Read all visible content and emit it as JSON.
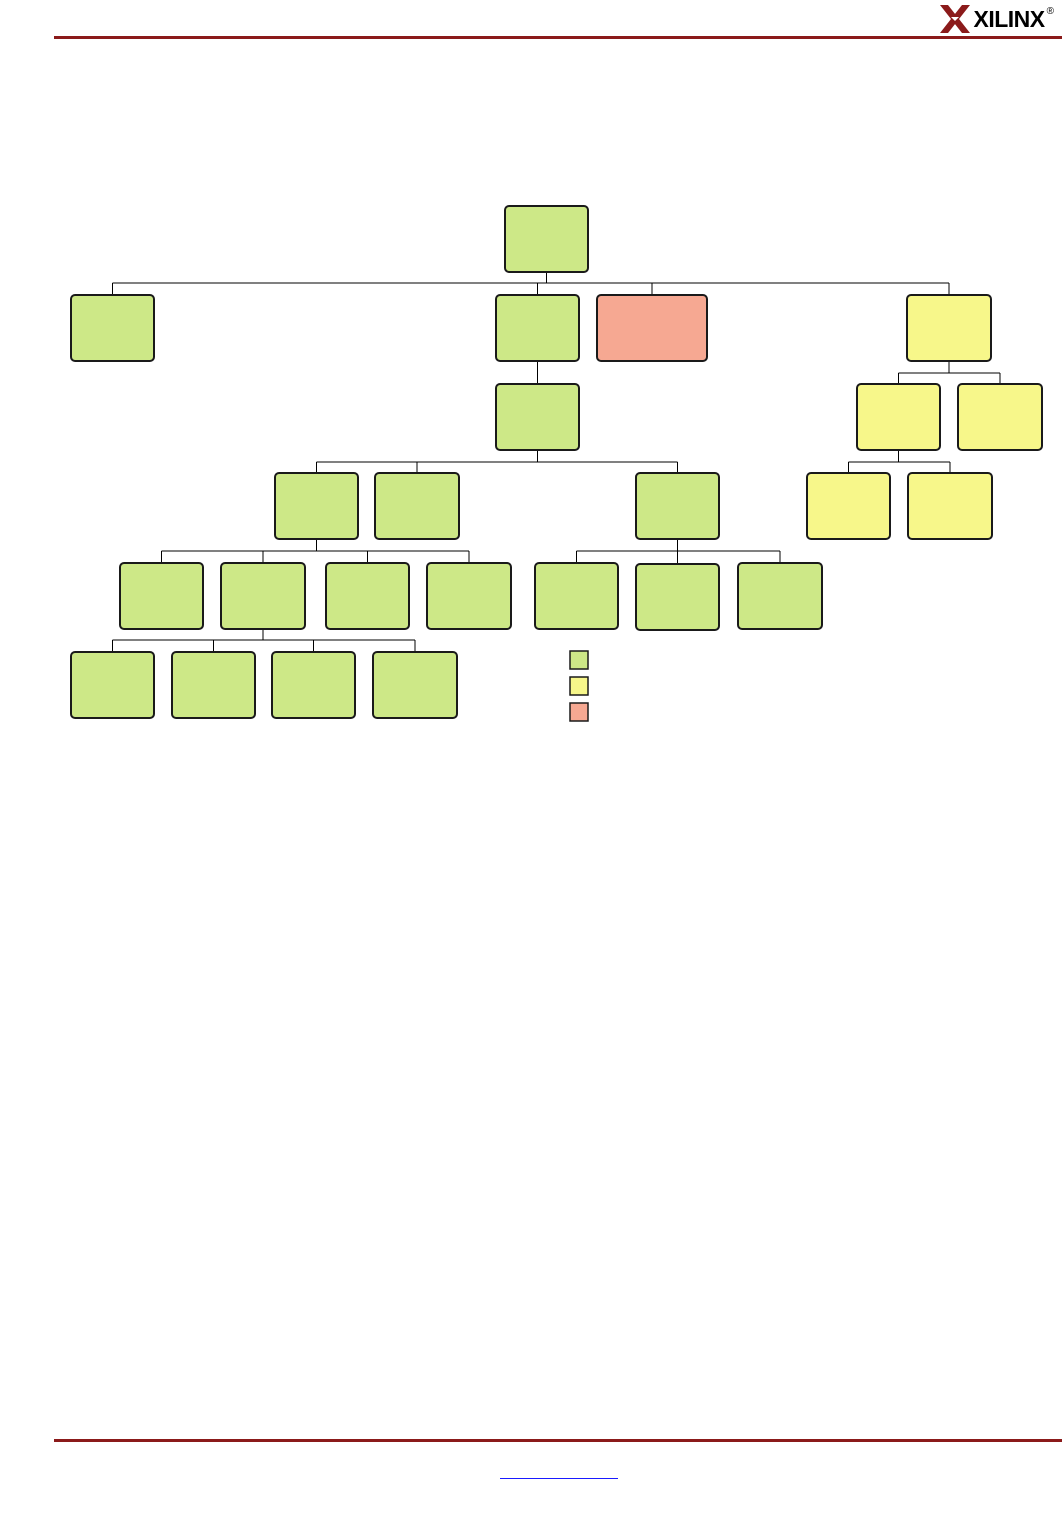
{
  "header": {
    "logo_text": "XILINX",
    "logo_mark": "®",
    "rule_color": "#8b1a1a"
  },
  "diagram": {
    "legend": [
      {
        "color": "#cde887"
      },
      {
        "color": "#f7f78a"
      },
      {
        "color": "#f6a892"
      }
    ],
    "node_colors": {
      "green": "#cde887",
      "yellow": "#f7f78a",
      "salmon": "#f6a892"
    },
    "nodes": [
      {
        "id": "root",
        "color": "green"
      },
      {
        "id": "n1a",
        "color": "green"
      },
      {
        "id": "n1b",
        "color": "green"
      },
      {
        "id": "n1c",
        "color": "salmon"
      },
      {
        "id": "n1d",
        "color": "yellow"
      },
      {
        "id": "n2",
        "color": "green"
      },
      {
        "id": "n2d_a",
        "color": "yellow"
      },
      {
        "id": "n2d_b",
        "color": "yellow"
      },
      {
        "id": "n3a",
        "color": "green"
      },
      {
        "id": "n3b",
        "color": "green"
      },
      {
        "id": "n3c",
        "color": "green"
      },
      {
        "id": "n3d_a",
        "color": "yellow"
      },
      {
        "id": "n3d_b",
        "color": "yellow"
      },
      {
        "id": "n4a",
        "color": "green"
      },
      {
        "id": "n4b",
        "color": "green"
      },
      {
        "id": "n4c",
        "color": "green"
      },
      {
        "id": "n4d",
        "color": "green"
      },
      {
        "id": "n4e",
        "color": "green"
      },
      {
        "id": "n4f",
        "color": "green"
      },
      {
        "id": "n4g",
        "color": "green"
      },
      {
        "id": "n5a",
        "color": "green"
      },
      {
        "id": "n5b",
        "color": "green"
      },
      {
        "id": "n5c",
        "color": "green"
      },
      {
        "id": "n5d",
        "color": "green"
      }
    ],
    "edges": [
      {
        "parent": "root",
        "children": [
          "n1a",
          "n1b",
          "n1c",
          "n1d"
        ]
      },
      {
        "parent": "n1b",
        "children": [
          "n2"
        ]
      },
      {
        "parent": "n1d",
        "children": [
          "n2d_a",
          "n2d_b"
        ]
      },
      {
        "parent": "n2",
        "children": [
          "n3a",
          "n3b",
          "n3c"
        ]
      },
      {
        "parent": "n2d_a",
        "children": [
          "n3d_a",
          "n3d_b"
        ]
      },
      {
        "parent": "n3a",
        "children": [
          "n4a",
          "n4b",
          "n4c",
          "n4d"
        ]
      },
      {
        "parent": "n3c",
        "children": [
          "n4e",
          "n4f",
          "n4g"
        ]
      },
      {
        "parent": "n4b",
        "children": [
          "n5a",
          "n5b",
          "n5c",
          "n5d"
        ]
      }
    ]
  },
  "footer": {
    "link_text": ""
  }
}
